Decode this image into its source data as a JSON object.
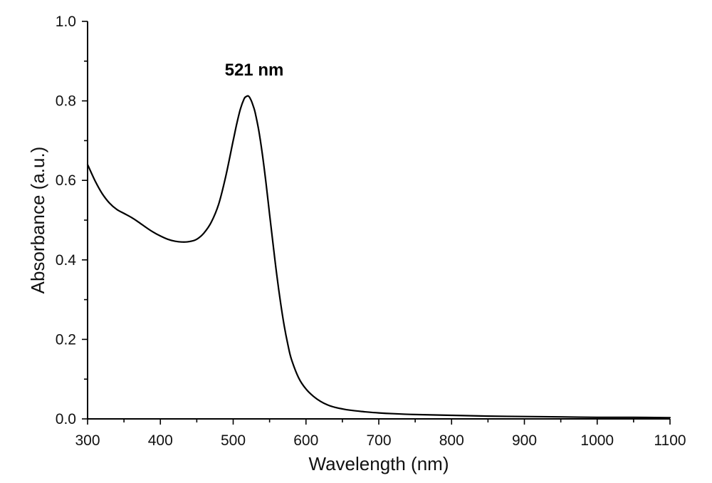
{
  "chart_data": {
    "type": "line",
    "title": "",
    "xlabel": "Wavelength (nm)",
    "ylabel": "Absorbance (a.u.)",
    "xlim": [
      300,
      1100
    ],
    "ylim": [
      0.0,
      1.0
    ],
    "x_ticks": [
      "300",
      "400",
      "500",
      "600",
      "700",
      "800",
      "900",
      "1000",
      "1100"
    ],
    "y_ticks": [
      "0.0",
      "0.2",
      "0.4",
      "0.6",
      "0.8",
      "1.0"
    ],
    "x_minor_step": 50,
    "y_minor_step": 0.1,
    "grid": false,
    "legend": "none",
    "line_color": "#000000",
    "annotations": [
      {
        "text": "521 nm",
        "x": 521,
        "y": 0.81
      }
    ],
    "series": [
      {
        "x": [
          300,
          310,
          320,
          330,
          340,
          350,
          360,
          370,
          380,
          390,
          400,
          410,
          420,
          430,
          440,
          450,
          460,
          470,
          480,
          490,
          500,
          505,
          510,
          515,
          518,
          521,
          524,
          527,
          530,
          535,
          540,
          545,
          550,
          555,
          560,
          565,
          570,
          575,
          580,
          590,
          600,
          610,
          620,
          630,
          640,
          650,
          660,
          680,
          700,
          720,
          750,
          800,
          850,
          900,
          950,
          1000,
          1050,
          1100
        ],
        "y": [
          0.64,
          0.6,
          0.567,
          0.543,
          0.527,
          0.517,
          0.507,
          0.495,
          0.482,
          0.47,
          0.46,
          0.452,
          0.447,
          0.445,
          0.446,
          0.452,
          0.468,
          0.495,
          0.54,
          0.612,
          0.7,
          0.743,
          0.78,
          0.805,
          0.811,
          0.812,
          0.804,
          0.79,
          0.772,
          0.727,
          0.667,
          0.595,
          0.515,
          0.437,
          0.36,
          0.293,
          0.235,
          0.188,
          0.15,
          0.103,
          0.075,
          0.057,
          0.044,
          0.035,
          0.029,
          0.025,
          0.022,
          0.018,
          0.015,
          0.013,
          0.011,
          0.009,
          0.007,
          0.006,
          0.005,
          0.004,
          0.004,
          0.003
        ]
      }
    ]
  }
}
